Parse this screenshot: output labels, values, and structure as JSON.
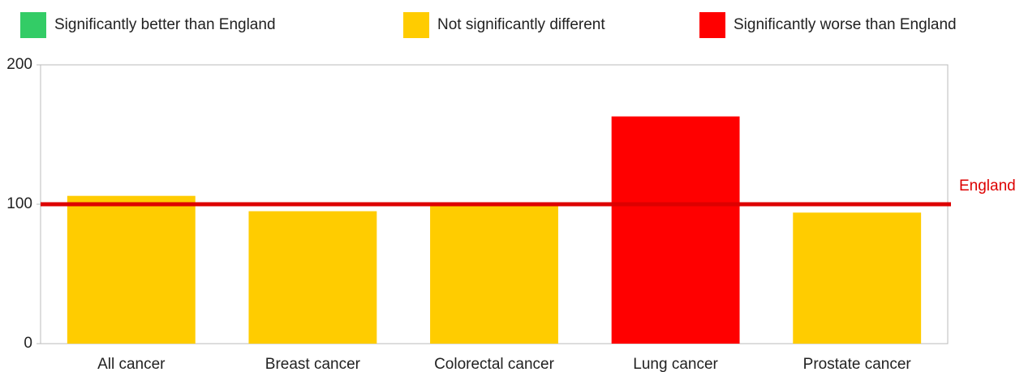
{
  "chart_data": {
    "type": "bar",
    "legend": [
      {
        "name": "Significantly better than England",
        "color": "#33cc66"
      },
      {
        "name": "Not significantly different",
        "color": "#ffcc00"
      },
      {
        "name": "Significantly worse than England",
        "color": "#ff0000"
      }
    ],
    "categories": [
      "All cancer",
      "Breast cancer",
      "Colorectal cancer",
      "Lung cancer",
      "Prostate cancer"
    ],
    "values": [
      106,
      95,
      99,
      163,
      94
    ],
    "colors": [
      "#ffcc00",
      "#ffcc00",
      "#ffcc00",
      "#ff0000",
      "#ffcc00"
    ],
    "reference_line": {
      "label": "England",
      "value": 100,
      "color": "#dd0000"
    },
    "ylim": [
      0,
      200
    ],
    "yticks": [
      0,
      100,
      200
    ]
  }
}
